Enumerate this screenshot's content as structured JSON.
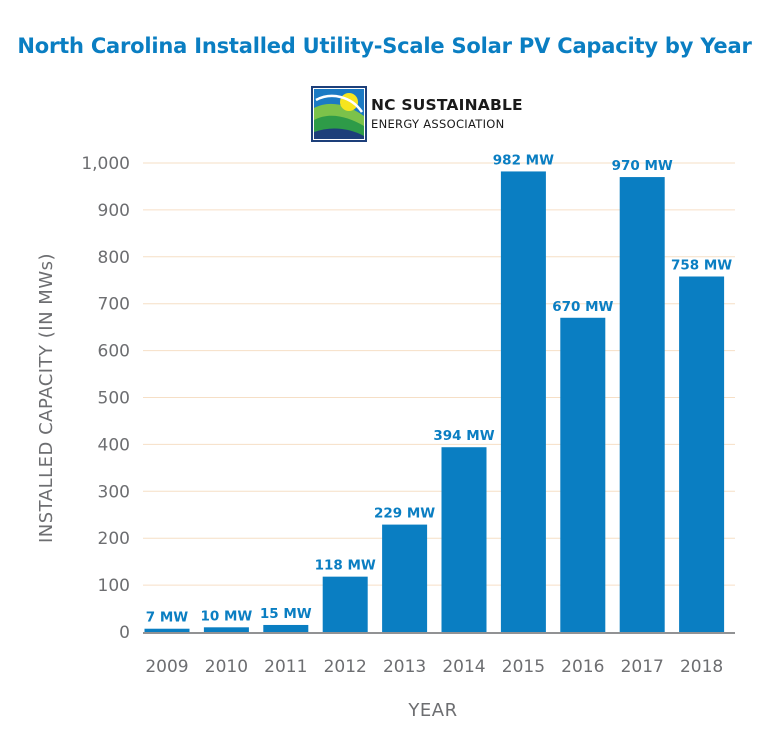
{
  "title": "North Carolina Installed Utility-Scale Solar PV Capacity by Year",
  "logo": {
    "line1": "NC SUSTAINABLE",
    "line2": "ENERGY ASSOCIATION",
    "colors": {
      "navy": "#1d3f7a",
      "blue": "#1b7ac4",
      "green": "#2e9b48",
      "light_green": "#7cc24a",
      "yellow": "#f6e51e"
    }
  },
  "colors": {
    "bar": "#0a7ec2",
    "title": "#0a7ec2",
    "grid": "#f6dfc6",
    "axis_text": "#6d6e71",
    "baseline": "#6d6e71"
  },
  "chart_data": {
    "type": "bar",
    "categories": [
      "2009",
      "2010",
      "2011",
      "2012",
      "2013",
      "2014",
      "2015",
      "2016",
      "2017",
      "2018"
    ],
    "values": [
      7,
      10,
      15,
      118,
      229,
      394,
      982,
      670,
      970,
      758
    ],
    "data_labels": [
      "7 MW",
      "10 MW",
      "15 MW",
      "118 MW",
      "229 MW",
      "394 MW",
      "982 MW",
      "670 MW",
      "970 MW",
      "758 MW"
    ],
    "title": "North Carolina Installed Utility-Scale Solar PV Capacity by Year",
    "xlabel": "YEAR",
    "ylabel": "INSTALLED CAPACITY (IN MWs)",
    "ylim": [
      0,
      1000
    ],
    "yticks": [
      0,
      100,
      200,
      300,
      400,
      500,
      600,
      700,
      800,
      900,
      1000
    ],
    "ytick_labels": [
      "0",
      "100",
      "200",
      "300",
      "400",
      "500",
      "600",
      "700",
      "800",
      "900",
      "1,000"
    ],
    "grid": true,
    "legend": "none"
  }
}
